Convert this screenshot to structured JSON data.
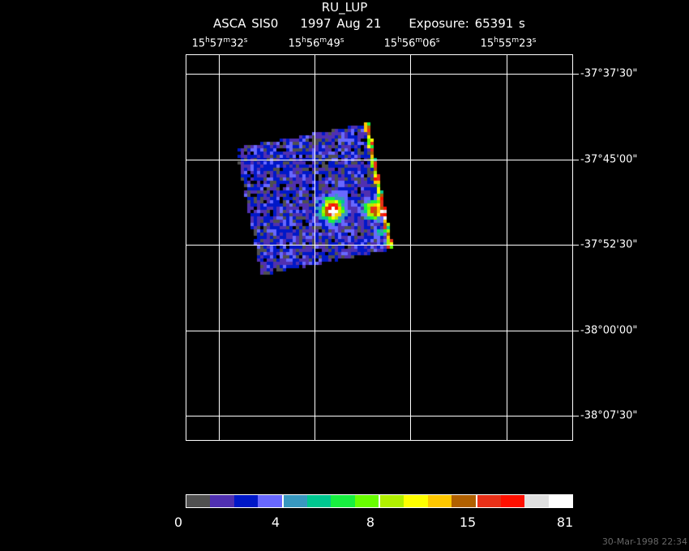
{
  "header": {
    "title": "RU_LUP",
    "instrument": "ASCA SIS0",
    "date": "1997 Aug 21",
    "exposure": "Exposure: 65391 s"
  },
  "ra_labels": [
    {
      "h": "15",
      "m": "57",
      "s": "32"
    },
    {
      "h": "15",
      "m": "56",
      "s": "49"
    },
    {
      "h": "15",
      "m": "56",
      "s": "06"
    },
    {
      "h": "15",
      "m": "55",
      "s": "23"
    }
  ],
  "dec_labels": [
    "-37°37'30\"",
    "-37°45'00\"",
    "-37°52'30\"",
    "-38°00'00\"",
    "-38°07'30\""
  ],
  "colorbar": {
    "colors": [
      "#505050",
      "#5030b0",
      "#0018c8",
      "#6868ff",
      "#3898c0",
      "#00c890",
      "#18f040",
      "#68ff00",
      "#b0f000",
      "#ffff00",
      "#ffc800",
      "#b06000",
      "#e83018",
      "#ff1000",
      "#e0e0e0",
      "#ffffff"
    ],
    "labels": [
      "0",
      "4",
      "8",
      "15",
      "81"
    ]
  },
  "timestamp": "30-Mar-1998 22:34"
}
